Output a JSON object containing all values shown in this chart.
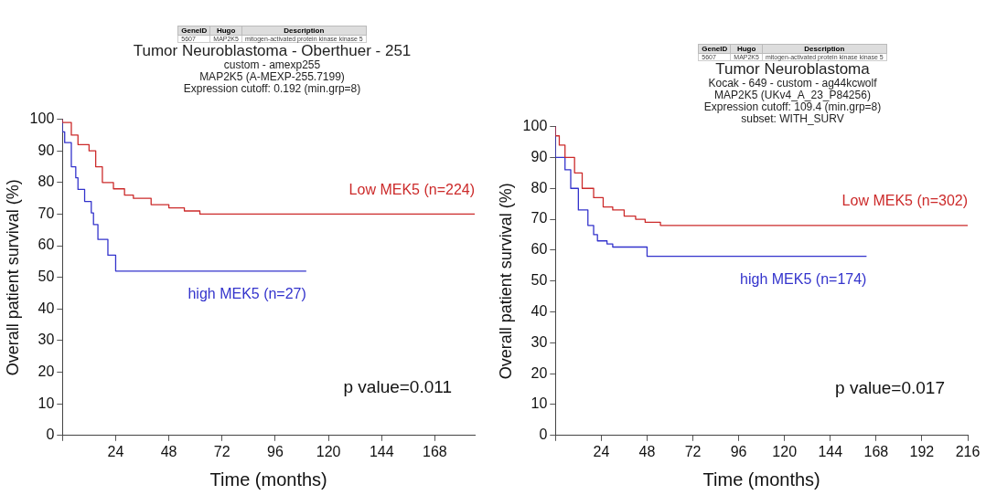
{
  "chart_data": [
    {
      "type": "step",
      "title": "Tumor Neuroblastoma  - Oberthuer - 251",
      "subtitle": "custom - amexp255\nMAP2K5 (A-MEXP-255.7199)\nExpression cutoff: 0.192 (min.grp=8)",
      "xlabel": "Time (months)",
      "ylabel": "Overall patient survival (%)",
      "annotations": [
        "GeneID",
        "Hugo",
        "Description",
        "5607",
        "MAP2K5",
        "mitogen-activated protein kinase kinase 5",
        "p value=0.011"
      ],
      "series": [
        {
          "name": "Low MEK5 (n=224)",
          "color": "#cc2a2a",
          "x": [
            0,
            4,
            7,
            12,
            15,
            18,
            23,
            28,
            32,
            40,
            48,
            55,
            62,
            66,
            186
          ],
          "values": [
            100,
            99,
            95,
            92,
            90,
            85,
            80,
            78,
            76,
            75,
            73,
            72,
            71,
            70,
            70
          ]
        },
        {
          "name": "high MEK5 (n=27)",
          "color": "#3333cc",
          "x": [
            0,
            1,
            4,
            6,
            7,
            10,
            13,
            14,
            16,
            20.5,
            24,
            28,
            110
          ],
          "values": [
            100,
            96,
            92.6,
            85,
            81.5,
            77.8,
            74,
            70.4,
            66.7,
            62,
            57,
            52,
            52
          ]
        }
      ],
      "xlim": [
        0,
        186
      ],
      "xticks": [
        {
          "value": 0,
          "label": null
        },
        24,
        48,
        72,
        96,
        120,
        144,
        168
      ],
      "ylim": [
        0,
        100
      ],
      "yticks": [
        0,
        10,
        20,
        30,
        40,
        50,
        60,
        70,
        80,
        90,
        100
      ],
      "grid": false,
      "legend": false
    },
    {
      "type": "step",
      "title": "Tumor Neuroblastoma",
      "subtitle": "Kocak - 649 - custom - ag44kcwolf\nMAP2K5 (UKv4_A_23_P84256)\nExpression cutoff: 109.4 (min.grp=8)\nsubset: WITH_SURV",
      "xlabel": "Time (months)",
      "ylabel": "Overall patient survival (%)",
      "annotations": [
        "GeneID",
        "Hugo",
        "Description",
        "5607",
        "MAP2K5",
        "mitogen-activated protein kinase kinase 5",
        "p value=0.017"
      ],
      "series": [
        {
          "name": "Low MEK5 (n=302)",
          "color": "#cc2a2a",
          "x": [
            0,
            2,
            5,
            10,
            14,
            20,
            25,
            30,
            36,
            42,
            47,
            55,
            64,
            216
          ],
          "values": [
            100,
            97,
            94,
            90,
            85,
            80,
            77,
            74,
            73,
            71,
            70,
            69,
            68,
            68
          ]
        },
        {
          "name": "high MEK5 (n=174)",
          "color": "#3333cc",
          "x": [
            0,
            5,
            8,
            12,
            17,
            20,
            22,
            27,
            30,
            48,
            50,
            163
          ],
          "values": [
            100,
            90,
            86,
            80,
            73,
            68,
            65,
            63,
            62,
            61,
            58,
            58
          ]
        }
      ],
      "xlim": [
        0,
        216
      ],
      "xticks": [
        {
          "value": 0,
          "label": null
        },
        24,
        48,
        72,
        96,
        120,
        144,
        168,
        192,
        216
      ],
      "ylim": [
        0,
        100
      ],
      "yticks": [
        0,
        10,
        20,
        30,
        40,
        50,
        60,
        70,
        80,
        90,
        100
      ],
      "grid": false,
      "legend": false
    }
  ]
}
